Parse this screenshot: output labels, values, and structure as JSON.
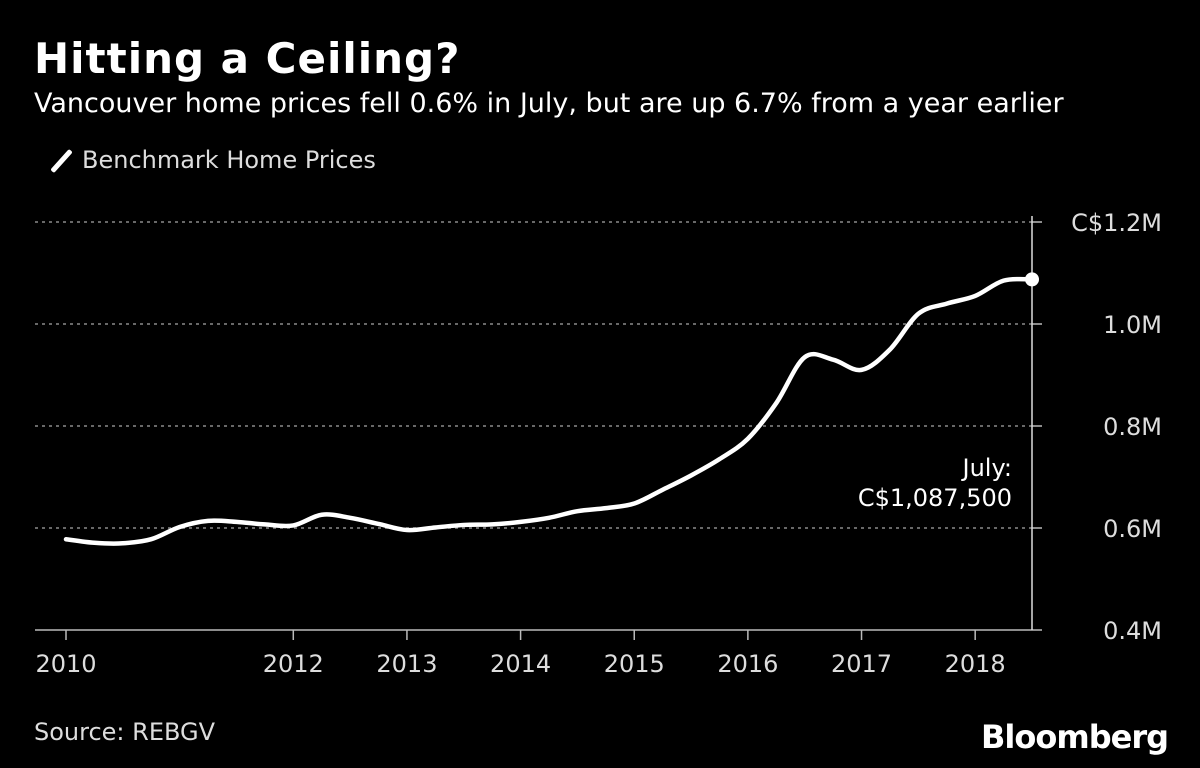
{
  "title": "Hitting a Ceiling?",
  "subtitle": "Vancouver home prices fell 0.6% in July, but are up 6.7% from a year earlier",
  "source": "Source: REBGV",
  "brand": "Bloomberg",
  "colors": {
    "background": "#000000",
    "line": "#ffffff",
    "grid": "#8a8a8a"
  },
  "chart_data": {
    "type": "line",
    "title": "Hitting a Ceiling?",
    "subtitle": "Vancouver home prices fell 0.6% in July, but are up 6.7% from a year earlier",
    "xlabel": "",
    "ylabel": "",
    "x_ticks": [
      "2010",
      "2012",
      "2013",
      "2014",
      "2015",
      "2016",
      "2017",
      "2018"
    ],
    "y_ticks": [
      "0.4M",
      "0.6M",
      "0.8M",
      "1.0M",
      "C$1.2M"
    ],
    "ylim": [
      400000,
      1200000
    ],
    "xlim": [
      "2010-01",
      "2018-07"
    ],
    "grid": true,
    "legend": "top-left",
    "annotation": {
      "label": "July:",
      "value_text": "C$1,087,500",
      "x": "2018-07",
      "y": 1087500
    },
    "series": [
      {
        "name": "Benchmark Home Prices",
        "x": [
          "2010-01",
          "2010-04",
          "2010-07",
          "2010-10",
          "2011-01",
          "2011-04",
          "2011-07",
          "2011-10",
          "2012-01",
          "2012-04",
          "2012-07",
          "2012-10",
          "2013-01",
          "2013-04",
          "2013-07",
          "2013-10",
          "2014-01",
          "2014-04",
          "2014-07",
          "2014-10",
          "2015-01",
          "2015-04",
          "2015-07",
          "2015-10",
          "2016-01",
          "2016-04",
          "2016-07",
          "2016-10",
          "2017-01",
          "2017-04",
          "2017-07",
          "2017-10",
          "2018-01",
          "2018-04",
          "2018-07"
        ],
        "values": [
          578000,
          571000,
          570000,
          578000,
          602000,
          614000,
          612000,
          607000,
          605000,
          626000,
          620000,
          608000,
          596000,
          601000,
          606000,
          607000,
          612000,
          620000,
          633000,
          639000,
          648000,
          675000,
          703000,
          735000,
          775000,
          845000,
          935000,
          930000,
          910000,
          950000,
          1020000,
          1040000,
          1055000,
          1085000,
          1087500
        ]
      }
    ]
  }
}
